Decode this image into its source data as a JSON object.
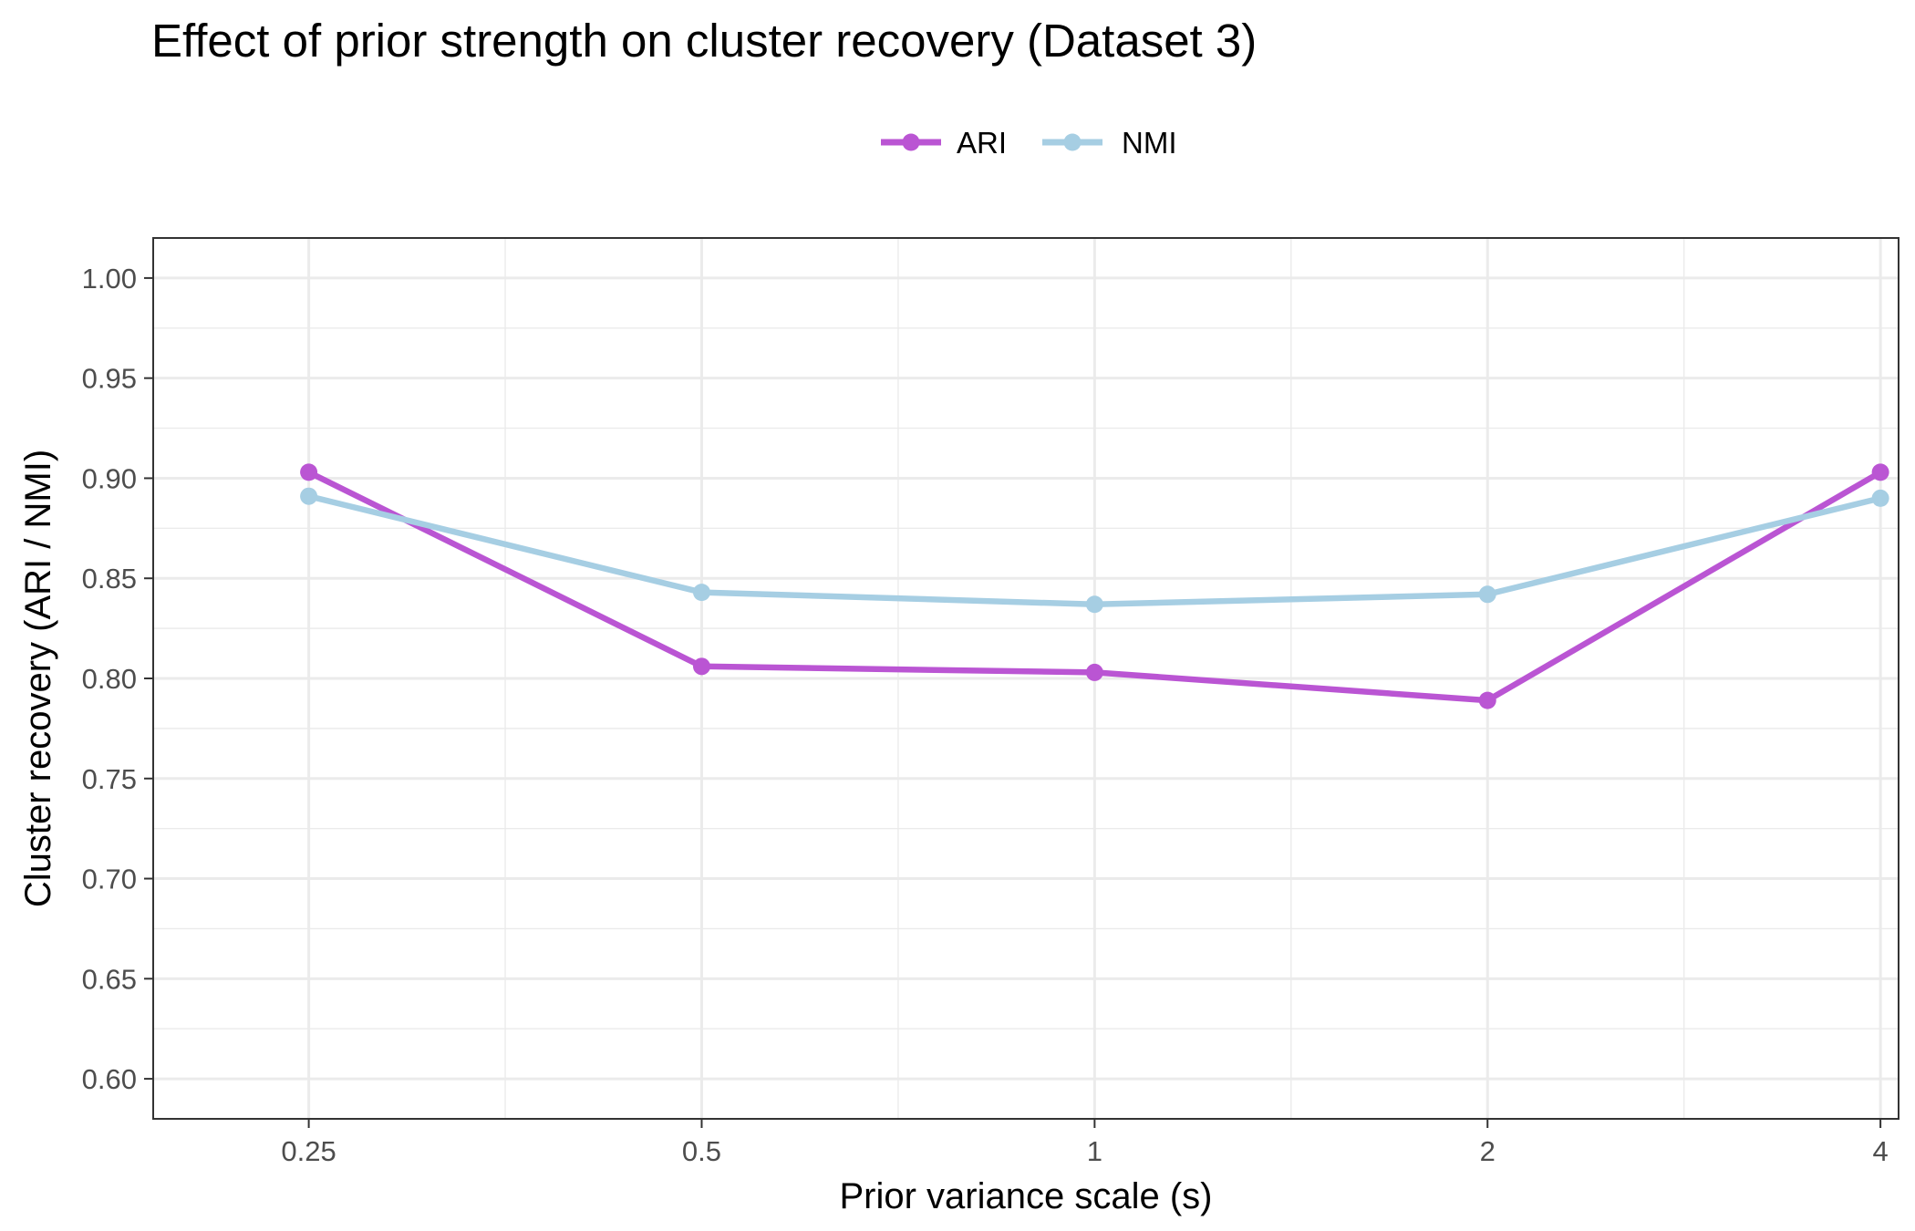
{
  "chart_data": {
    "type": "line",
    "title": "Effect of prior strength on cluster recovery (Dataset 3)",
    "xlabel": "Prior variance scale (s)",
    "ylabel": "Cluster recovery (ARI / NMI)",
    "x": [
      0.25,
      0.5,
      1,
      2,
      4
    ],
    "x_tick_labels": [
      "0.25",
      "0.5",
      "1",
      "2",
      "4"
    ],
    "y_tick_labels": [
      "0.60",
      "0.65",
      "0.70",
      "0.75",
      "0.80",
      "0.85",
      "0.90",
      "0.95",
      "1.00"
    ],
    "y_ticks": [
      0.6,
      0.65,
      0.7,
      0.75,
      0.8,
      0.85,
      0.9,
      0.95,
      1.0
    ],
    "xlim": [
      0.19,
      4.13
    ],
    "ylim": [
      0.58,
      1.02
    ],
    "grid": true,
    "legend_position": "top",
    "series": [
      {
        "name": "ARI",
        "color": "#BA55D3",
        "values": [
          0.903,
          0.806,
          0.803,
          0.789,
          0.903
        ]
      },
      {
        "name": "NMI",
        "color": "#A6CEE3",
        "values": [
          0.891,
          0.843,
          0.837,
          0.842,
          0.89
        ]
      }
    ]
  }
}
